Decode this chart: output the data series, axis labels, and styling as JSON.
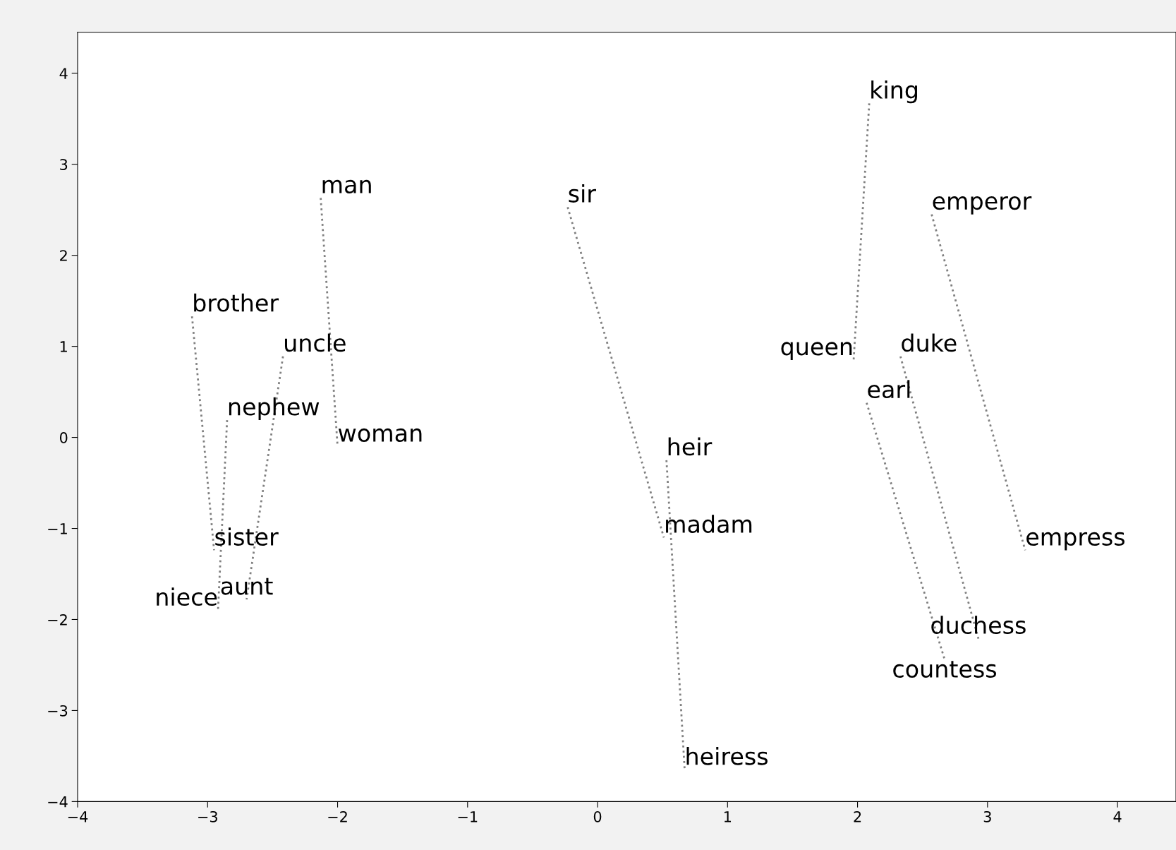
{
  "chart_data": {
    "type": "line",
    "line_style": "dotted",
    "marker": "none",
    "grid": false,
    "xlim": [
      -4,
      4.45
    ],
    "ylim": [
      -4,
      4.45
    ],
    "xticks": [
      {
        "value": -4,
        "label": "−4"
      },
      {
        "value": -3,
        "label": "−3"
      },
      {
        "value": -2,
        "label": "−2"
      },
      {
        "value": -1,
        "label": "−1"
      },
      0,
      1,
      2,
      3,
      4
    ],
    "yticks": [
      {
        "value": -4,
        "label": "−4"
      },
      {
        "value": -3,
        "label": "−3"
      },
      {
        "value": -2,
        "label": "−2"
      },
      {
        "value": -1,
        "label": "−1"
      },
      0,
      1,
      2,
      3,
      4
    ],
    "series": [
      {
        "color": "#808080",
        "x": [
          -2.13,
          -2.0
        ],
        "values": [
          2.63,
          -0.1
        ]
      },
      {
        "color": "#808080",
        "x": [
          -3.12,
          -2.95
        ],
        "values": [
          1.33,
          -1.24
        ]
      },
      {
        "color": "#808080",
        "x": [
          -2.42,
          -2.7
        ],
        "values": [
          0.89,
          -1.78
        ]
      },
      {
        "color": "#808080",
        "x": [
          -2.85,
          -2.92
        ],
        "values": [
          0.19,
          -1.9
        ]
      },
      {
        "color": "#808080",
        "x": [
          -0.23,
          0.51
        ],
        "values": [
          2.53,
          -1.1
        ]
      },
      {
        "color": "#808080",
        "x": [
          0.53,
          0.67
        ],
        "values": [
          -0.25,
          -3.65
        ]
      },
      {
        "color": "#808080",
        "x": [
          2.09,
          1.97
        ],
        "values": [
          3.67,
          0.85
        ]
      },
      {
        "color": "#808080",
        "x": [
          2.57,
          3.29
        ],
        "values": [
          2.45,
          -1.24
        ]
      },
      {
        "color": "#808080",
        "x": [
          2.33,
          2.93
        ],
        "values": [
          0.89,
          -2.21
        ]
      },
      {
        "color": "#808080",
        "x": [
          2.07,
          2.67
        ],
        "values": [
          0.38,
          -2.44
        ]
      }
    ],
    "annotations": [
      {
        "text": "man",
        "x": -2.13,
        "y": 2.63
      },
      {
        "text": "woman",
        "x": -2.0,
        "y": -0.1
      },
      {
        "text": "brother",
        "x": -3.12,
        "y": 1.33
      },
      {
        "text": "sister",
        "x": -2.95,
        "y": -1.24
      },
      {
        "text": "uncle",
        "x": -2.42,
        "y": 0.89
      },
      {
        "text": "aunt",
        "x": -2.7,
        "y": -1.78
      },
      {
        "text": "nephew",
        "x": -2.85,
        "y": 0.19
      },
      {
        "text": "niece",
        "x": -2.92,
        "y": -1.9
      },
      {
        "text": "sir",
        "x": -0.23,
        "y": 2.53
      },
      {
        "text": "madam",
        "x": 0.51,
        "y": -1.1
      },
      {
        "text": "heir",
        "x": 0.53,
        "y": -0.25
      },
      {
        "text": "heiress",
        "x": 0.67,
        "y": -3.65
      },
      {
        "text": "king",
        "x": 2.09,
        "y": 3.67
      },
      {
        "text": "queen",
        "x": 1.97,
        "y": 0.85
      },
      {
        "text": "emperor",
        "x": 2.57,
        "y": 2.45
      },
      {
        "text": "empress",
        "x": 3.29,
        "y": -1.24
      },
      {
        "text": "duke",
        "x": 2.33,
        "y": 0.89
      },
      {
        "text": "duchess",
        "x": 2.93,
        "y": -2.21
      },
      {
        "text": "earl",
        "x": 2.07,
        "y": 0.38
      },
      {
        "text": "countess",
        "x": 2.67,
        "y": -2.44
      }
    ]
  }
}
